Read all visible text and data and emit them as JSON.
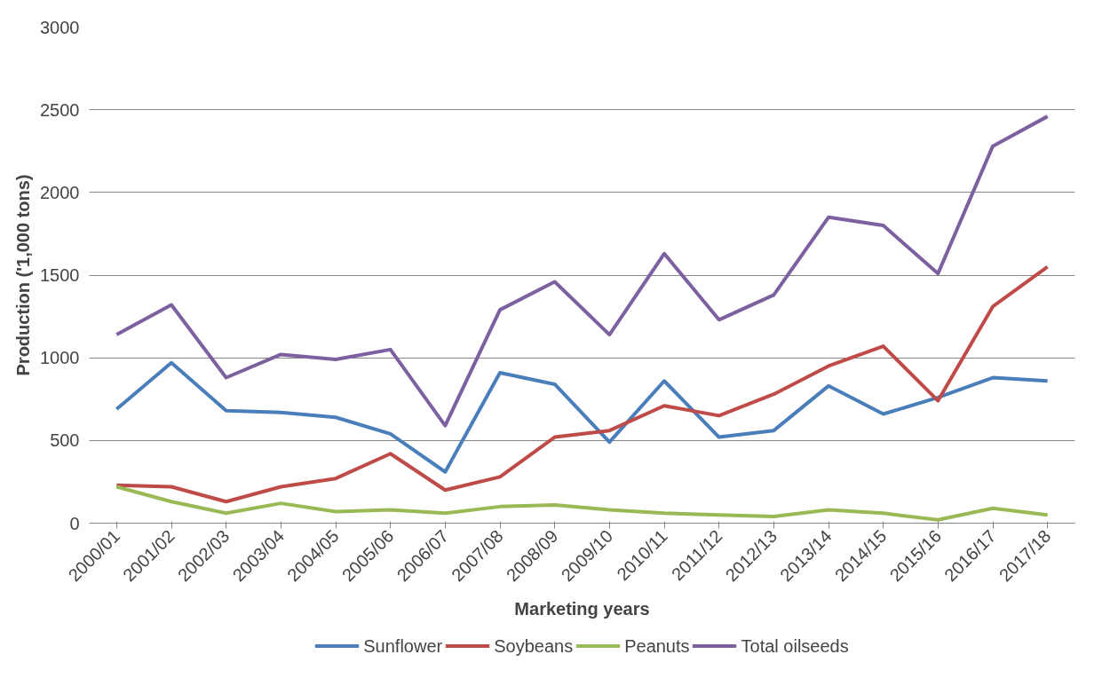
{
  "chart_data": {
    "type": "line",
    "xlabel": "Marketing years",
    "ylabel": "Production ('1,000 tons)",
    "categories": [
      "2000/01",
      "2001/02",
      "2002/03",
      "2003/04",
      "2004/05",
      "2005/06",
      "2006/07",
      "2007/08",
      "2008/09",
      "2009/10",
      "2010/11",
      "2011/12",
      "2012/13",
      "2013/14",
      "2014/15",
      "2015/16",
      "2016/17",
      "2017/18"
    ],
    "series": [
      {
        "name": "Sunflower",
        "color": "#4a7ebb",
        "values": [
          690,
          970,
          680,
          670,
          640,
          540,
          310,
          910,
          840,
          490,
          860,
          520,
          560,
          830,
          660,
          760,
          880,
          860
        ]
      },
      {
        "name": "Soybeans",
        "color": "#be4b48",
        "values": [
          230,
          220,
          130,
          220,
          270,
          420,
          200,
          280,
          520,
          560,
          710,
          650,
          780,
          950,
          1070,
          740,
          1310,
          1550
        ]
      },
      {
        "name": "Peanuts",
        "color": "#98b954",
        "values": [
          220,
          130,
          60,
          120,
          70,
          80,
          60,
          100,
          110,
          80,
          60,
          50,
          40,
          80,
          60,
          20,
          90,
          50
        ]
      },
      {
        "name": "Total oilseeds",
        "color": "#7d60a0",
        "values": [
          1140,
          1320,
          880,
          1020,
          990,
          1050,
          590,
          1290,
          1460,
          1140,
          1630,
          1230,
          1380,
          1850,
          1800,
          1510,
          2280,
          2460
        ]
      }
    ],
    "ylim": [
      0,
      3000
    ],
    "yticks": [
      0,
      500,
      1000,
      1500,
      2000,
      2500,
      3000
    ],
    "grid": "y",
    "legend": "bottom",
    "marker": "none",
    "line_style": "solid"
  }
}
